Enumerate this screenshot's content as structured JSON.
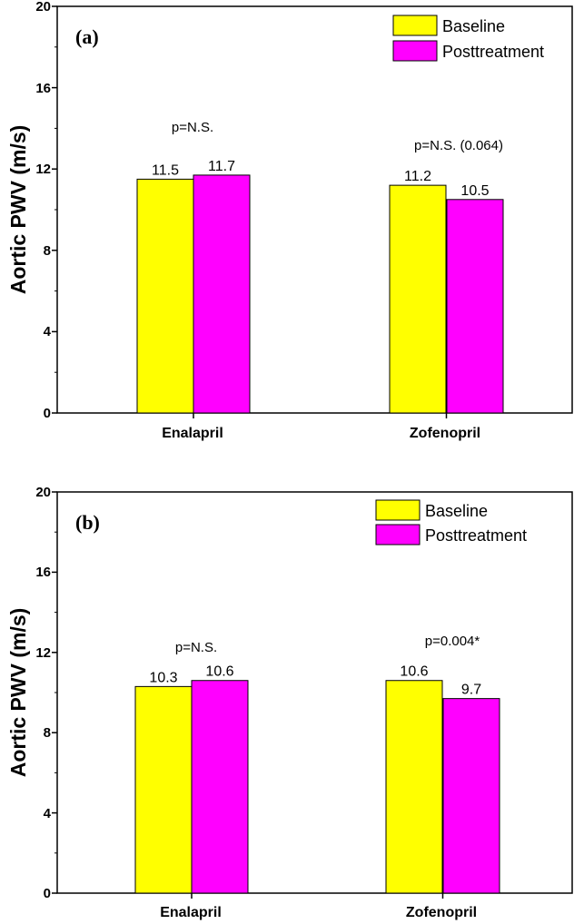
{
  "colors": {
    "baseline": "#ffff00",
    "posttreatment": "#ff00ff",
    "axis": "#000000"
  },
  "chart_data": [
    {
      "type": "bar",
      "panel": "(a)",
      "categories": [
        "Enalapril",
        "Zofenopril"
      ],
      "series": [
        {
          "name": "Baseline",
          "values": [
            11.5,
            11.2
          ],
          "labels": [
            "11.5",
            "11.2"
          ]
        },
        {
          "name": "Posttreatment",
          "values": [
            11.7,
            10.5
          ],
          "labels": [
            "11.7",
            "10.5"
          ]
        }
      ],
      "ylabel": "Aortic PWV (m/s)",
      "ylim": [
        0,
        20
      ],
      "yticks": [
        "0",
        "4",
        "8",
        "12",
        "16",
        "20"
      ],
      "legend": [
        "Baseline",
        "Posttreatment"
      ],
      "annotations": [
        "p=N.S.",
        "p=N.S. (0.064)"
      ]
    },
    {
      "type": "bar",
      "panel": "(b)",
      "categories": [
        "Enalapril",
        "Zofenopril"
      ],
      "series": [
        {
          "name": "Baseline",
          "values": [
            10.3,
            10.6
          ],
          "labels": [
            "10.3",
            "10.6"
          ]
        },
        {
          "name": "Posttreatment",
          "values": [
            10.6,
            9.7
          ],
          "labels": [
            "10.6",
            "9.7"
          ]
        }
      ],
      "ylabel": "Aortic PWV (m/s)",
      "ylim": [
        0,
        20
      ],
      "yticks": [
        "0",
        "4",
        "8",
        "12",
        "16",
        "20"
      ],
      "legend": [
        "Baseline",
        "Posttreatment"
      ],
      "annotations": [
        "p=N.S.",
        "p=0.004*"
      ]
    }
  ]
}
